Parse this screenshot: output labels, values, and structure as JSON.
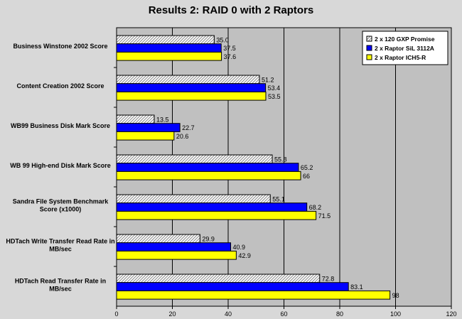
{
  "chart_data": {
    "type": "bar",
    "orientation": "horizontal",
    "title": "Results 2: RAID 0 with 2 Raptors",
    "categories": [
      [
        "Business Winstone 2002 Score"
      ],
      [
        "Content Creation 2002 Score"
      ],
      [
        "WB99 Business Disk Mark Score"
      ],
      [
        "WB 99 High-end Disk Mark Score"
      ],
      [
        "Sandra File System Benchmark",
        "Score (x1000)"
      ],
      [
        "HDTach Write Transfer Read Rate in",
        "MB/sec"
      ],
      [
        "HDTach Read Transfer Rate in",
        "MB/sec"
      ]
    ],
    "series": [
      {
        "name": "2 x 120 GXP Promise",
        "color": "#ffffff",
        "pattern": "hatch",
        "values": [
          35.0,
          51.2,
          13.5,
          55.8,
          55.1,
          29.9,
          72.8
        ],
        "labels": [
          "35.0",
          "51.2",
          "13.5",
          "55.8",
          "55.1",
          "29.9",
          "72.8"
        ]
      },
      {
        "name": "2 x Raptor SiL 3112A",
        "color": "#0000ff",
        "pattern": "solid",
        "values": [
          37.5,
          53.4,
          22.7,
          65.2,
          68.2,
          40.9,
          83.1
        ],
        "labels": [
          "37.5",
          "53.4",
          "22.7",
          "65.2",
          "68.2",
          "40.9",
          "83.1"
        ]
      },
      {
        "name": "2 x Raptor ICH5-R",
        "color": "#ffff00",
        "pattern": "solid",
        "values": [
          37.6,
          53.5,
          20.6,
          66,
          71.5,
          42.9,
          98
        ],
        "labels": [
          "37.6",
          "53.5",
          "20.6",
          "66",
          "71.5",
          "42.9",
          "98"
        ]
      }
    ],
    "xlim": [
      0,
      120
    ],
    "xticks": [
      0,
      20,
      40,
      60,
      80,
      100,
      120
    ],
    "xlabel": "",
    "ylabel": "",
    "grid": true,
    "legend_position": "top-right",
    "plot_background": "#c0c0c0"
  }
}
